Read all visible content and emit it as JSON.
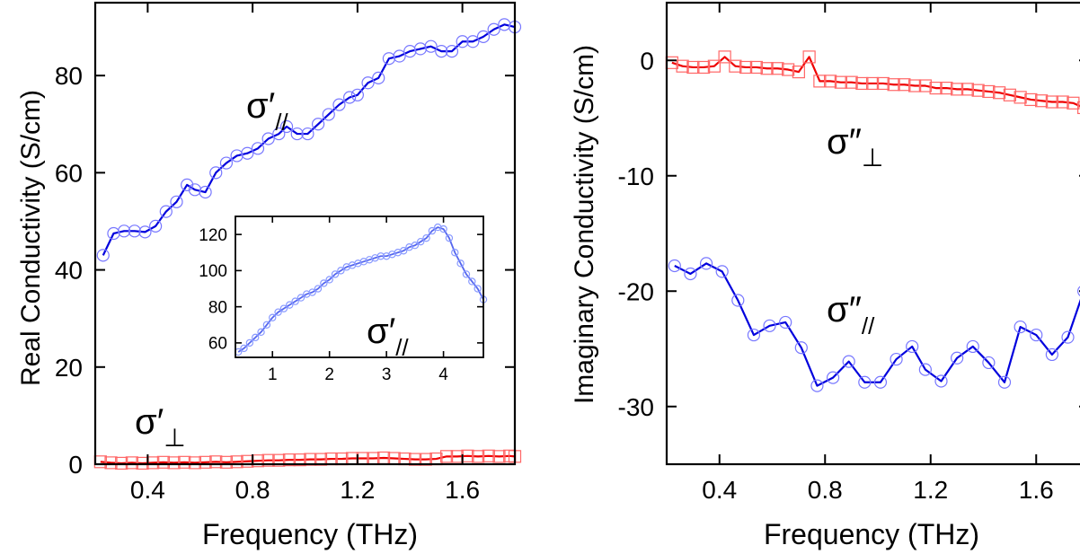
{
  "chart_data": [
    {
      "type": "line",
      "panel": "left",
      "xlabel": "Frequency (THz)",
      "ylabel": "Real Conductivity (S/cm)",
      "xlim": [
        0.2,
        1.8
      ],
      "ylim": [
        0,
        95
      ],
      "x_ticks": [
        0.4,
        0.8,
        1.2,
        1.6
      ],
      "x_tick_labels": [
        "0.4",
        "0.8",
        "1.2",
        "1.6"
      ],
      "y_ticks": [
        0,
        20,
        40,
        60,
        80
      ],
      "y_tick_labels": [
        "0",
        "20",
        "40",
        "60",
        "80"
      ],
      "grid": false,
      "series": [
        {
          "label_base": "σ′",
          "label_sub": "//",
          "color": "#0000dd",
          "marker_color": "#7777ff",
          "marker": "circle",
          "x": [
            0.23,
            0.27,
            0.31,
            0.35,
            0.39,
            0.43,
            0.47,
            0.51,
            0.55,
            0.58,
            0.62,
            0.66,
            0.7,
            0.74,
            0.78,
            0.82,
            0.86,
            0.9,
            0.93,
            0.97,
            1.01,
            1.05,
            1.09,
            1.13,
            1.17,
            1.2,
            1.24,
            1.28,
            1.32,
            1.36,
            1.4,
            1.44,
            1.48,
            1.52,
            1.56,
            1.6,
            1.64,
            1.68,
            1.72,
            1.76,
            1.8
          ],
          "y": [
            43,
            47.5,
            48,
            48,
            47.8,
            49,
            52,
            54,
            57.5,
            56.5,
            56,
            60,
            62,
            63.5,
            64,
            65,
            67,
            68,
            69.5,
            68,
            68,
            70,
            72,
            74,
            75.5,
            76,
            78.5,
            79.5,
            83.5,
            84,
            85,
            85.5,
            86,
            85,
            85,
            87,
            87,
            88,
            89.5,
            90.5,
            90
          ]
        },
        {
          "label_base": "σ′",
          "label_sub": "⊥",
          "color": "#ee0000",
          "marker_color": "#ff6666",
          "marker": "square",
          "x": [
            0.22,
            0.26,
            0.3,
            0.34,
            0.38,
            0.42,
            0.46,
            0.5,
            0.54,
            0.58,
            0.62,
            0.66,
            0.7,
            0.74,
            0.78,
            0.82,
            0.86,
            0.9,
            0.94,
            0.98,
            1.02,
            1.06,
            1.1,
            1.14,
            1.18,
            1.22,
            1.26,
            1.3,
            1.34,
            1.38,
            1.42,
            1.46,
            1.5,
            1.54,
            1.58,
            1.62,
            1.66,
            1.7,
            1.74,
            1.78,
            1.8
          ],
          "y": [
            0.5,
            0.3,
            0.2,
            0.3,
            0.2,
            0.3,
            0.4,
            0.3,
            0.4,
            0.3,
            0.4,
            0.5,
            0.4,
            0.5,
            0.6,
            0.7,
            0.8,
            0.8,
            0.9,
            0.9,
            1.0,
            1.0,
            1.1,
            1.1,
            1.2,
            1.2,
            1.2,
            1.3,
            1.2,
            1.1,
            1.0,
            1.0,
            1.1,
            1.6,
            1.6,
            1.7,
            1.6,
            1.7,
            1.6,
            1.7,
            1.6
          ]
        }
      ],
      "inset": {
        "xlim": [
          0.35,
          4.7
        ],
        "ylim": [
          52,
          130
        ],
        "x_ticks": [
          1,
          2,
          3,
          4
        ],
        "x_tick_labels": [
          "1",
          "2",
          "3",
          "4"
        ],
        "y_ticks": [
          60,
          80,
          100,
          120
        ],
        "y_tick_labels": [
          "60",
          "80",
          "100",
          "120"
        ],
        "series": [
          {
            "label_base": "σ′",
            "label_sub": "//",
            "color": "#5566ee",
            "marker_color": "#8899ff",
            "marker": "circle",
            "x": [
              0.4,
              0.5,
              0.6,
              0.7,
              0.8,
              0.9,
              1.0,
              1.1,
              1.2,
              1.3,
              1.4,
              1.5,
              1.6,
              1.7,
              1.8,
              1.9,
              2.0,
              2.1,
              2.2,
              2.3,
              2.4,
              2.5,
              2.6,
              2.7,
              2.8,
              2.9,
              3.0,
              3.1,
              3.2,
              3.3,
              3.4,
              3.5,
              3.6,
              3.7,
              3.8,
              3.9,
              4.0,
              4.1,
              4.2,
              4.3,
              4.4,
              4.5,
              4.6,
              4.7
            ],
            "y": [
              55,
              57,
              60,
              63,
              66,
              70,
              74,
              77,
              79,
              81,
              83,
              85,
              87,
              88,
              90,
              93,
              95,
              98,
              100,
              102,
              103,
              104,
              105,
              106,
              107,
              108,
              108,
              109,
              110,
              111,
              113,
              114,
              116,
              118,
              122,
              124,
              123,
              118,
              110,
              104,
              98,
              94,
              90,
              84
            ]
          }
        ]
      }
    },
    {
      "type": "line",
      "panel": "right",
      "xlabel": "Frequency (THz)",
      "ylabel": "Imaginary Conductivity (S/cm)",
      "xlim": [
        0.2,
        1.8
      ],
      "ylim": [
        -35,
        5
      ],
      "x_ticks": [
        0.4,
        0.8,
        1.2,
        1.6
      ],
      "x_tick_labels": [
        "0.4",
        "0.8",
        "1.2",
        "1.6"
      ],
      "y_ticks": [
        0,
        -10,
        -20,
        -30
      ],
      "y_tick_labels": [
        "0",
        "-10",
        "-20",
        "-30"
      ],
      "grid": false,
      "series": [
        {
          "label_base": "σ″",
          "label_sub": "⊥",
          "color": "#ee0000",
          "marker_color": "#ff6666",
          "marker": "square",
          "x": [
            0.22,
            0.26,
            0.3,
            0.34,
            0.38,
            0.42,
            0.46,
            0.5,
            0.54,
            0.58,
            0.62,
            0.66,
            0.7,
            0.74,
            0.78,
            0.82,
            0.86,
            0.9,
            0.94,
            0.98,
            1.02,
            1.06,
            1.1,
            1.14,
            1.18,
            1.22,
            1.26,
            1.3,
            1.34,
            1.38,
            1.42,
            1.46,
            1.5,
            1.54,
            1.58,
            1.62,
            1.66,
            1.7,
            1.74,
            1.78,
            1.8
          ],
          "y": [
            -0.2,
            -0.5,
            -0.6,
            -0.6,
            -0.5,
            0.3,
            -0.5,
            -0.6,
            -0.6,
            -0.7,
            -0.7,
            -0.8,
            -1.0,
            0.3,
            -1.8,
            -1.8,
            -1.9,
            -1.9,
            -2.0,
            -2.0,
            -2.0,
            -2.1,
            -2.1,
            -2.2,
            -2.2,
            -2.4,
            -2.4,
            -2.5,
            -2.5,
            -2.6,
            -2.7,
            -2.8,
            -3.0,
            -3.2,
            -3.4,
            -3.5,
            -3.6,
            -3.6,
            -3.7,
            -4.1,
            -4.1
          ]
        },
        {
          "label_base": "σ″",
          "label_sub": "//",
          "color": "#0000dd",
          "marker_color": "#7777ff",
          "marker": "circle",
          "x": [
            0.23,
            0.29,
            0.35,
            0.41,
            0.47,
            0.53,
            0.59,
            0.65,
            0.71,
            0.77,
            0.83,
            0.89,
            0.95,
            1.01,
            1.07,
            1.13,
            1.18,
            1.24,
            1.3,
            1.36,
            1.42,
            1.48,
            1.54,
            1.6,
            1.66,
            1.72,
            1.78,
            1.8
          ],
          "y": [
            -17.8,
            -18.5,
            -17.6,
            -18.3,
            -20.8,
            -23.8,
            -23.0,
            -22.7,
            -24.9,
            -28.2,
            -27.5,
            -26.1,
            -27.9,
            -27.9,
            -25.9,
            -24.8,
            -26.8,
            -27.8,
            -25.8,
            -24.8,
            -26.2,
            -27.9,
            -23.1,
            -23.8,
            -25.5,
            -24.0,
            -20.0,
            -19.8
          ]
        }
      ]
    }
  ]
}
